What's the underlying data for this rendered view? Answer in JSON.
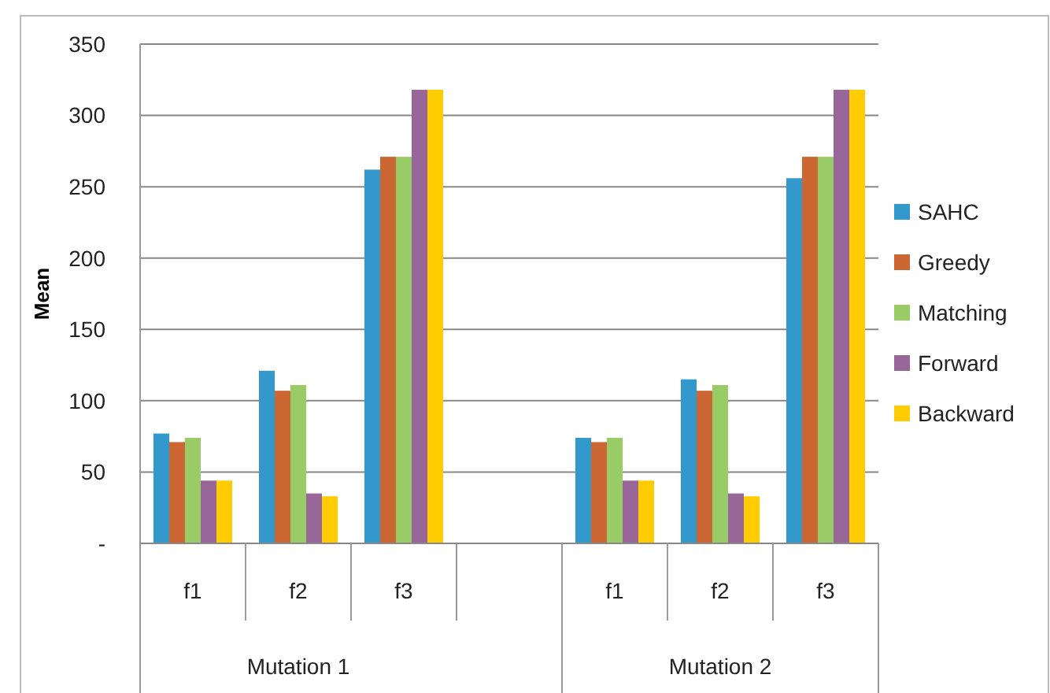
{
  "chart_data": {
    "type": "bar",
    "ylabel": "Mean",
    "categories": [
      "f1",
      "f2",
      "f3",
      null,
      "f1",
      "f2",
      "f3"
    ],
    "series": [
      {
        "name": "SAHC",
        "color": "#3399cc",
        "values": [
          77,
          121,
          262,
          null,
          74,
          115,
          256
        ]
      },
      {
        "name": "Greedy",
        "color": "#cc6633",
        "values": [
          71,
          107,
          271,
          null,
          71,
          107,
          271
        ]
      },
      {
        "name": "Matching",
        "color": "#99cc66",
        "values": [
          74,
          111,
          271,
          null,
          74,
          111,
          271
        ]
      },
      {
        "name": "Forward",
        "color": "#996699",
        "values": [
          44,
          35,
          318,
          null,
          44,
          35,
          318
        ]
      },
      {
        "name": "Backward",
        "color": "#ffcc00",
        "values": [
          44,
          33,
          318,
          null,
          44,
          33,
          318
        ]
      }
    ],
    "ylim": [
      0,
      350
    ],
    "yticks": [
      {
        "value": 0,
        "label": "-"
      },
      50,
      100,
      150,
      200,
      250,
      300,
      350
    ],
    "grid": "y",
    "legend": "right",
    "annotations": [
      "Mutation 1",
      "Mutation 2"
    ]
  }
}
